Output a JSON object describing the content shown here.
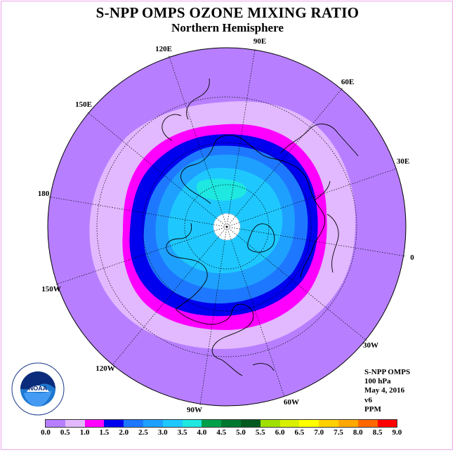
{
  "title": "S-NPP OMPS OZONE MIXING RATIO",
  "subtitle": "Northern Hemisphere",
  "info": {
    "instrument": "S-NPP OMPS",
    "level": "100 hPa",
    "date": "May 4, 2016",
    "version": "v6",
    "units": "PPM"
  },
  "longitude_labels": [
    "90E",
    "60E",
    "30E",
    "0",
    "30W",
    "60W",
    "90W",
    "120W",
    "150W",
    "180",
    "150E",
    "120E"
  ],
  "colorbar": {
    "ticks": [
      "0.0",
      "0.5",
      "1.0",
      "1.5",
      "2.0",
      "2.5",
      "3.0",
      "3.5",
      "4.0",
      "4.5",
      "5.0",
      "5.5",
      "6.0",
      "6.5",
      "7.0",
      "7.5",
      "8.0",
      "8.5",
      "9.0"
    ],
    "colors": [
      "#b77fff",
      "#e2b8ff",
      "#ff00ff",
      "#0000ee",
      "#1e78ff",
      "#1ea0ff",
      "#1ec8ff",
      "#1ee8e0",
      "#00a04a",
      "#007830",
      "#005a20",
      "#a0e000",
      "#d8f000",
      "#ffff00",
      "#ffd000",
      "#ffa800",
      "#ff6800",
      "#ff0000",
      "#8b5a3c"
    ]
  },
  "logo": {
    "name": "noaa-logo",
    "text": "NOAA"
  }
}
